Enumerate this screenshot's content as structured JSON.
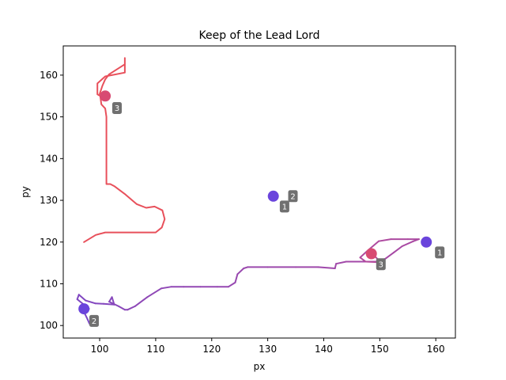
{
  "chart_data": {
    "type": "line",
    "title": "Keep of the Lead Lord",
    "xlabel": "px",
    "ylabel": "py",
    "xlim": [
      93.5,
      163.5
    ],
    "ylim": [
      97,
      167
    ],
    "xticks": [
      100,
      110,
      120,
      130,
      140,
      150,
      160
    ],
    "yticks": [
      100,
      110,
      120,
      130,
      140,
      150,
      160
    ],
    "grid": false,
    "paths": [
      {
        "color": "#e8505b",
        "points": [
          [
            97.2,
            120
          ],
          [
            99.3,
            121.7
          ],
          [
            101,
            122.3
          ],
          [
            103,
            122.3
          ],
          [
            106,
            122.3
          ],
          [
            108,
            122.3
          ],
          [
            110,
            122.3
          ],
          [
            111.1,
            123.5
          ],
          [
            111.6,
            125.5
          ],
          [
            111.2,
            127.6
          ],
          [
            109.8,
            128.5
          ],
          [
            108.3,
            128.2
          ],
          [
            106.6,
            129.1
          ],
          [
            104.6,
            131.4
          ],
          [
            102.6,
            133.4
          ],
          [
            101.9,
            133.9
          ],
          [
            101.2,
            133.9
          ],
          [
            101.2,
            140
          ],
          [
            101.2,
            146
          ],
          [
            101.2,
            150
          ],
          [
            101,
            152
          ],
          [
            100.3,
            153
          ],
          [
            100.1,
            155
          ],
          [
            99.6,
            155.4
          ],
          [
            99.6,
            158
          ],
          [
            101,
            159.7
          ],
          [
            104.5,
            160.6
          ],
          [
            104.5,
            164.1
          ],
          [
            104.5,
            162.6
          ],
          [
            101.7,
            160.2
          ],
          [
            101,
            159
          ],
          [
            100.5,
            157.5
          ],
          [
            100,
            155.5
          ]
        ]
      },
      {
        "color_start": "#7a47c6",
        "color_end": "#b54a9a",
        "points": [
          [
            98.2,
            100.4
          ],
          [
            97.8,
            101.6
          ],
          [
            97.3,
            103
          ],
          [
            98.1,
            104
          ],
          [
            97,
            105.2
          ],
          [
            96,
            106.3
          ],
          [
            96.3,
            107.4
          ],
          [
            97.5,
            106
          ],
          [
            99.2,
            105.3
          ],
          [
            100.7,
            105.2
          ],
          [
            102.6,
            105
          ],
          [
            102.2,
            106.8
          ],
          [
            101.7,
            105.7
          ],
          [
            103.4,
            104.6
          ],
          [
            104.5,
            103.8
          ],
          [
            105,
            103.8
          ],
          [
            106.3,
            104.6
          ],
          [
            108.5,
            106.8
          ],
          [
            111,
            108.9
          ],
          [
            112.8,
            109.3
          ],
          [
            115,
            109.3
          ],
          [
            118,
            109.3
          ],
          [
            121,
            109.3
          ],
          [
            123,
            109.3
          ],
          [
            124.2,
            110.3
          ],
          [
            124.6,
            112.3
          ],
          [
            125.7,
            113.7
          ],
          [
            126.4,
            114
          ],
          [
            130,
            114
          ],
          [
            135,
            114
          ],
          [
            139,
            114
          ],
          [
            142,
            113.7
          ],
          [
            142.2,
            114.8
          ],
          [
            144,
            115.3
          ],
          [
            147,
            115.3
          ],
          [
            149.5,
            115.3
          ],
          [
            151,
            116
          ],
          [
            152.5,
            117.5
          ],
          [
            154,
            119
          ],
          [
            156,
            120.2
          ],
          [
            157,
            120.7
          ],
          [
            155,
            120.7
          ],
          [
            152,
            120.7
          ],
          [
            149.8,
            120.2
          ],
          [
            147.8,
            117.9
          ],
          [
            146.5,
            116.3
          ],
          [
            147.5,
            115.3
          ],
          [
            149.5,
            115.2
          ],
          [
            150.5,
            114.8
          ],
          [
            148.8,
            117
          ]
        ]
      }
    ],
    "markers": [
      {
        "x": 101,
        "y": 155,
        "color": "#d84a72"
      },
      {
        "x": 131,
        "y": 131,
        "color": "#6a44dc"
      },
      {
        "x": 158.3,
        "y": 120,
        "color": "#6a44dc"
      },
      {
        "x": 148.5,
        "y": 117.2,
        "color": "#d84a72"
      },
      {
        "x": 97.2,
        "y": 104,
        "color": "#6a44dc"
      }
    ],
    "labels": [
      {
        "text": "3",
        "x": 103.1,
        "y": 152.1
      },
      {
        "text": "2",
        "x": 134.5,
        "y": 131
      },
      {
        "text": "1",
        "x": 133,
        "y": 128.5
      },
      {
        "text": "1",
        "x": 160.7,
        "y": 117.5
      },
      {
        "text": "3",
        "x": 150.2,
        "y": 114.7
      },
      {
        "text": "2",
        "x": 99,
        "y": 101.1
      }
    ]
  }
}
